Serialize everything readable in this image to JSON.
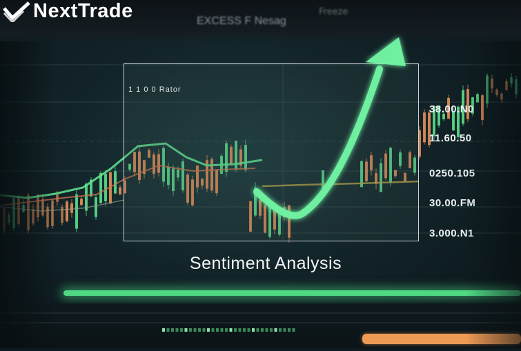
{
  "brand": {
    "name": "NextTrade",
    "icon": "logo-check-mark-icon"
  },
  "header": {
    "toolbar_text": "EXCESS F Nesag",
    "tab_text": "Freeze"
  },
  "chart_panel": {
    "label": "1 1 0 0 Rator",
    "price_labels": [
      "38.00.N0",
      "11.60.50",
      "0250.105",
      "30.00.FM",
      "3.000.N1"
    ]
  },
  "caption": "Sentiment Analysis",
  "colors": {
    "bull": "#5ee08e",
    "bear": "#e8915a",
    "accent": "#4fd985",
    "arrow": "#6ef0a0",
    "panel_border": "#c9d3d6"
  }
}
